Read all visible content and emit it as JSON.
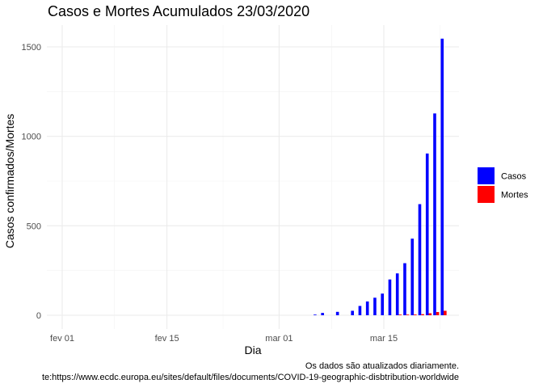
{
  "chart_data": {
    "type": "bar",
    "title": "Casos e Mortes Acumulados  23/03/2020",
    "xlabel": "Dia",
    "ylabel": "Casos confirmados/Mortes",
    "x_ticks": [
      "fev 01",
      "fev 15",
      "mar 01",
      "mar 15"
    ],
    "y_ticks": [
      "0",
      "500",
      "1000",
      "1500"
    ],
    "ylim": [
      -70,
      1610
    ],
    "grid": true,
    "legend_position": "right",
    "colors": {
      "Casos": "#0000FF",
      "Mortes": "#FF0000"
    },
    "dates": [
      "2020-03-06",
      "2020-03-07",
      "2020-03-08",
      "2020-03-09",
      "2020-03-10",
      "2020-03-11",
      "2020-03-12",
      "2020-03-13",
      "2020-03-14",
      "2020-03-15",
      "2020-03-16",
      "2020-03-17",
      "2020-03-18",
      "2020-03-19",
      "2020-03-20",
      "2020-03-21",
      "2020-03-22",
      "2020-03-23"
    ],
    "series": [
      {
        "name": "Casos",
        "values": [
          2,
          13,
          0,
          19,
          0,
          25,
          52,
          77,
          98,
          121,
          200,
          234,
          291,
          428,
          621,
          904,
          1128,
          1546
        ]
      },
      {
        "name": "Mortes",
        "values": [
          0,
          0,
          0,
          0,
          0,
          0,
          0,
          0,
          0,
          0,
          0,
          1,
          1,
          4,
          6,
          11,
          18,
          25
        ]
      }
    ]
  },
  "caption": {
    "line1": "Os dados são atualizados diariamente.",
    "line2": "te:https://www.ecdc.europa.eu/sites/default/files/documents/COVID-19-geographic-disbtribution-worldwide"
  }
}
